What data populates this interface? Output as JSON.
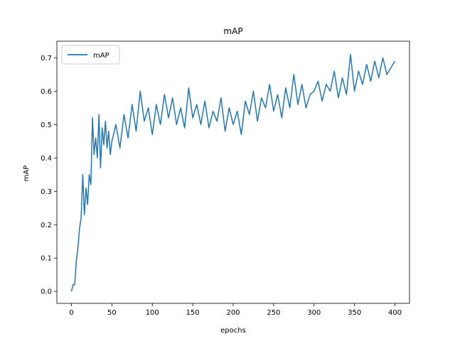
{
  "chart_data": {
    "type": "line",
    "title": "mAP",
    "xlabel": "epochs",
    "ylabel": "mAP",
    "xlim": [
      -18,
      418
    ],
    "ylim": [
      -0.0357,
      0.7497
    ],
    "xticks": [
      0,
      50,
      100,
      150,
      200,
      250,
      300,
      350,
      400
    ],
    "yticks": [
      0.0,
      0.1,
      0.2,
      0.3,
      0.4,
      0.5,
      0.6,
      0.7
    ],
    "xtick_labels": [
      "0",
      "50",
      "100",
      "150",
      "200",
      "250",
      "300",
      "350",
      "400"
    ],
    "ytick_labels": [
      "0.0",
      "0.1",
      "0.2",
      "0.3",
      "0.4",
      "0.5",
      "0.6",
      "0.7"
    ],
    "grid": false,
    "legend": "upper-left",
    "series": [
      {
        "name": "mAP",
        "color": "#1f77b4",
        "x": [
          0,
          2,
          4,
          6,
          8,
          10,
          12,
          14,
          16,
          18,
          20,
          22,
          24,
          26,
          28,
          30,
          32,
          34,
          36,
          38,
          40,
          42,
          44,
          46,
          48,
          50,
          55,
          60,
          65,
          70,
          75,
          80,
          85,
          90,
          95,
          100,
          105,
          110,
          115,
          120,
          125,
          130,
          135,
          140,
          145,
          150,
          155,
          160,
          165,
          170,
          175,
          180,
          185,
          190,
          195,
          200,
          205,
          210,
          215,
          220,
          225,
          230,
          235,
          240,
          245,
          250,
          255,
          260,
          265,
          270,
          275,
          280,
          285,
          290,
          295,
          300,
          305,
          310,
          315,
          320,
          325,
          330,
          335,
          340,
          345,
          350,
          355,
          360,
          365,
          370,
          375,
          380,
          385,
          390,
          395,
          400
        ],
        "y": [
          0.0,
          0.02,
          0.02,
          0.09,
          0.13,
          0.19,
          0.22,
          0.35,
          0.23,
          0.31,
          0.26,
          0.35,
          0.32,
          0.52,
          0.41,
          0.46,
          0.4,
          0.53,
          0.37,
          0.49,
          0.44,
          0.51,
          0.43,
          0.48,
          0.41,
          0.45,
          0.5,
          0.43,
          0.53,
          0.46,
          0.56,
          0.48,
          0.6,
          0.51,
          0.55,
          0.47,
          0.56,
          0.5,
          0.59,
          0.52,
          0.58,
          0.5,
          0.55,
          0.49,
          0.61,
          0.52,
          0.56,
          0.5,
          0.57,
          0.49,
          0.54,
          0.51,
          0.58,
          0.48,
          0.55,
          0.5,
          0.54,
          0.47,
          0.57,
          0.53,
          0.6,
          0.51,
          0.58,
          0.55,
          0.62,
          0.54,
          0.59,
          0.52,
          0.61,
          0.55,
          0.65,
          0.56,
          0.62,
          0.55,
          0.59,
          0.6,
          0.63,
          0.57,
          0.62,
          0.6,
          0.66,
          0.58,
          0.64,
          0.59,
          0.71,
          0.6,
          0.66,
          0.62,
          0.68,
          0.63,
          0.69,
          0.64,
          0.7,
          0.65,
          0.67,
          0.69
        ]
      }
    ]
  }
}
